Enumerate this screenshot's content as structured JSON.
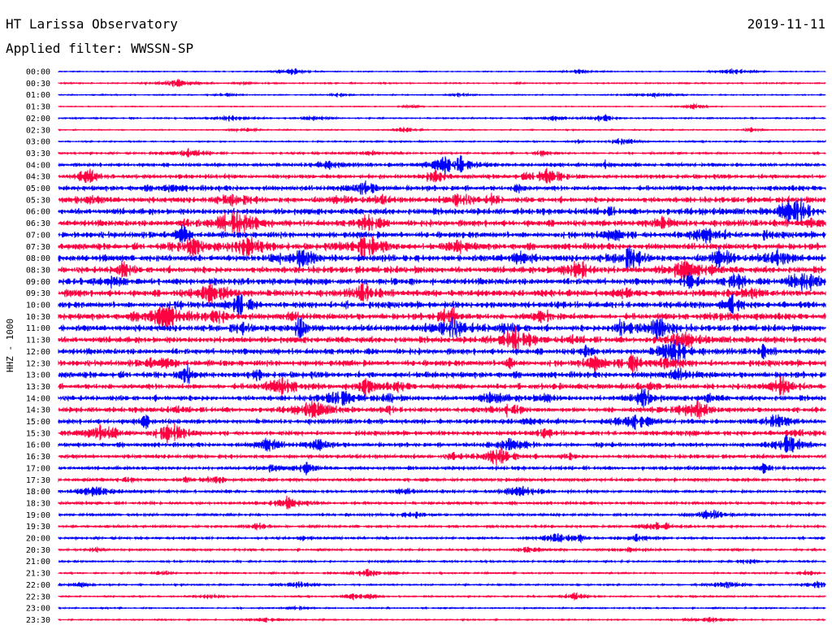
{
  "header": {
    "title": "HT Larissa Observatory",
    "date": "2019-11-11",
    "filter": "Applied filter: WWSSN-SP"
  },
  "chart_data": {
    "type": "line",
    "ylabel": "HHZ - 1000",
    "y_tick_labels": [
      "00:00",
      "00:30",
      "01:00",
      "01:30",
      "02:00",
      "02:30",
      "03:00",
      "03:30",
      "04:00",
      "04:30",
      "05:00",
      "05:30",
      "06:00",
      "06:30",
      "07:00",
      "07:30",
      "08:00",
      "08:30",
      "09:00",
      "09:30",
      "10:00",
      "10:30",
      "11:00",
      "11:30",
      "12:00",
      "12:30",
      "13:00",
      "13:30",
      "14:00",
      "14:30",
      "15:00",
      "15:30",
      "16:00",
      "16:30",
      "17:00",
      "17:30",
      "18:00",
      "18:30",
      "19:00",
      "19:30",
      "20:00",
      "20:30",
      "21:00",
      "21:30",
      "22:00",
      "22:30",
      "23:00",
      "23:30"
    ],
    "trace_colors": [
      "#0000ff",
      "#ff0040"
    ],
    "noise_level_by_line": [
      0.6,
      0.8,
      0.7,
      0.5,
      0.9,
      0.7,
      0.9,
      1.2,
      2.2,
      2.6,
      3.2,
      3.6,
      4.0,
      4.0,
      4.0,
      4.0,
      4.2,
      4.2,
      4.2,
      4.2,
      4.0,
      4.0,
      4.0,
      4.0,
      3.8,
      3.8,
      3.8,
      3.6,
      3.4,
      3.2,
      3.0,
      2.8,
      2.6,
      2.4,
      2.2,
      2.0,
      1.8,
      1.7,
      1.6,
      1.5,
      1.4,
      1.3,
      1.2,
      1.0,
      1.0,
      0.9,
      0.9,
      0.8
    ]
  }
}
